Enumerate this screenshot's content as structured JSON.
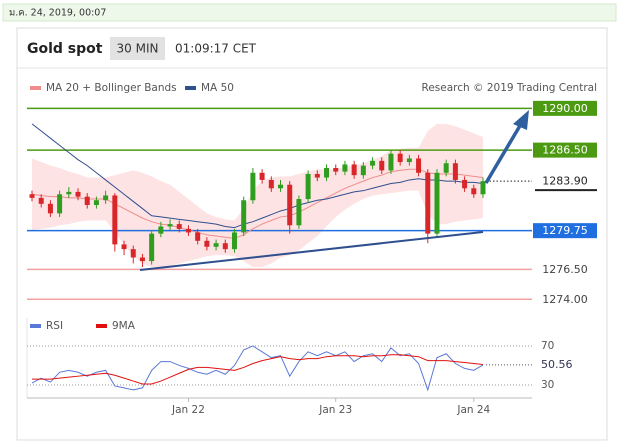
{
  "header": {
    "date": "ม.ค. 24, 2019, 00:07",
    "title": "Gold spot",
    "interval": "30 MIN",
    "time": "01:09:17 CET"
  },
  "chart_data": [
    {
      "type": "candlestick",
      "source": "Research © 2019 Trading Central",
      "ylim": [
        1273.1,
        1290.7
      ],
      "up_color": "#2f9e1f",
      "down_color": "#d9262a",
      "open": [
        1282.8,
        1282.5,
        1282.0,
        1281.2,
        1282.8,
        1283.0,
        1282.6,
        1281.9,
        1282.3,
        1282.7,
        1278.6,
        1278.2,
        1277.5,
        1277.2,
        1279.5,
        1280.1,
        1280.3,
        1279.9,
        1279.6,
        1278.9,
        1278.4,
        1278.7,
        1278.2,
        1279.6,
        1282.3,
        1284.6,
        1284.0,
        1283.3,
        1283.6,
        1280.2,
        1282.4,
        1284.5,
        1284.2,
        1285.0,
        1284.7,
        1285.3,
        1284.4,
        1285.2,
        1285.6,
        1284.8,
        1286.2,
        1285.5,
        1285.8,
        1284.6,
        1279.5,
        1284.6,
        1285.4,
        1284.0,
        1283.3,
        1282.8
      ],
      "high": [
        1283.1,
        1282.8,
        1282.3,
        1283.1,
        1283.4,
        1283.3,
        1282.9,
        1282.6,
        1283.1,
        1282.9,
        1278.9,
        1278.5,
        1277.8,
        1279.8,
        1280.5,
        1280.7,
        1280.6,
        1280.2,
        1279.9,
        1279.2,
        1279.0,
        1279.0,
        1279.9,
        1282.6,
        1285.0,
        1284.9,
        1284.3,
        1284.0,
        1283.9,
        1282.7,
        1284.8,
        1284.8,
        1285.3,
        1285.3,
        1285.6,
        1285.6,
        1285.5,
        1285.9,
        1285.9,
        1286.5,
        1286.5,
        1286.1,
        1286.1,
        1284.9,
        1284.9,
        1285.7,
        1285.7,
        1284.3,
        1283.6,
        1284.2
      ],
      "low": [
        1282.2,
        1281.7,
        1280.9,
        1280.9,
        1282.5,
        1282.3,
        1281.6,
        1281.6,
        1282.0,
        1278.0,
        1277.7,
        1277.0,
        1276.7,
        1276.9,
        1279.2,
        1279.8,
        1279.6,
        1279.3,
        1278.6,
        1278.1,
        1278.1,
        1277.9,
        1277.9,
        1279.3,
        1282.0,
        1283.7,
        1283.0,
        1283.0,
        1279.5,
        1279.9,
        1282.1,
        1283.9,
        1283.9,
        1284.4,
        1284.4,
        1284.1,
        1284.1,
        1284.9,
        1284.5,
        1284.5,
        1285.2,
        1285.2,
        1284.3,
        1278.7,
        1279.2,
        1284.3,
        1283.7,
        1283.0,
        1282.5,
        1282.5
      ],
      "close": [
        1282.5,
        1282.0,
        1281.2,
        1282.8,
        1283.0,
        1282.6,
        1281.9,
        1282.3,
        1282.7,
        1278.6,
        1278.2,
        1277.5,
        1277.2,
        1279.5,
        1280.1,
        1280.3,
        1279.9,
        1279.6,
        1278.9,
        1278.4,
        1278.7,
        1278.2,
        1279.6,
        1282.3,
        1284.6,
        1284.0,
        1283.3,
        1283.6,
        1280.2,
        1282.4,
        1284.5,
        1284.2,
        1285.0,
        1284.7,
        1285.3,
        1284.4,
        1285.2,
        1285.6,
        1284.8,
        1286.2,
        1285.5,
        1285.8,
        1284.6,
        1279.5,
        1284.6,
        1285.4,
        1284.0,
        1283.3,
        1282.8,
        1283.9
      ],
      "series": [
        {
          "name": "MA 20 + Bollinger Bands",
          "color": "#f08c8c",
          "band_color": "#fde3e3",
          "values": [
            1282.8,
            1282.7,
            1282.6,
            1282.6,
            1282.5,
            1282.5,
            1282.4,
            1282.4,
            1282.4,
            1282.0,
            1281.6,
            1281.2,
            1280.8,
            1280.5,
            1280.3,
            1280.2,
            1280.0,
            1279.8,
            1279.6,
            1279.4,
            1279.3,
            1279.2,
            1279.1,
            1279.4,
            1279.9,
            1280.3,
            1280.6,
            1280.9,
            1281.0,
            1281.3,
            1281.7,
            1282.1,
            1282.5,
            1282.9,
            1283.3,
            1283.6,
            1283.9,
            1284.2,
            1284.4,
            1284.7,
            1284.8,
            1284.9,
            1284.9,
            1284.6,
            1284.5,
            1284.5,
            1284.5,
            1284.4,
            1284.3,
            1284.2
          ],
          "upper": [
            1285.8,
            1285.5,
            1285.2,
            1285.0,
            1284.7,
            1284.5,
            1284.2,
            1284.2,
            1284.2,
            1284.4,
            1284.6,
            1284.8,
            1284.6,
            1284.3,
            1283.9,
            1283.6,
            1283.0,
            1282.4,
            1281.8,
            1281.2,
            1280.9,
            1280.7,
            1280.6,
            1281.6,
            1283.1,
            1283.9,
            1284.2,
            1284.3,
            1284.3,
            1284.5,
            1284.7,
            1284.9,
            1284.9,
            1284.9,
            1285.1,
            1285.2,
            1285.4,
            1285.7,
            1286.0,
            1286.5,
            1286.6,
            1286.7,
            1286.7,
            1288.1,
            1288.7,
            1288.7,
            1288.5,
            1288.2,
            1287.9,
            1287.6
          ],
          "lower": [
            1279.8,
            1279.9,
            1280.0,
            1280.2,
            1280.3,
            1280.5,
            1280.6,
            1280.6,
            1280.6,
            1279.6,
            1278.6,
            1277.6,
            1277.0,
            1276.7,
            1276.7,
            1276.8,
            1277.0,
            1277.2,
            1277.4,
            1277.6,
            1277.7,
            1277.7,
            1277.6,
            1277.2,
            1276.7,
            1276.7,
            1277.0,
            1277.5,
            1277.7,
            1278.1,
            1278.7,
            1279.3,
            1280.1,
            1280.9,
            1281.5,
            1282.0,
            1282.4,
            1282.7,
            1282.8,
            1282.9,
            1283.0,
            1283.1,
            1283.1,
            1281.1,
            1280.3,
            1280.3,
            1280.5,
            1280.6,
            1280.7,
            1280.8
          ]
        },
        {
          "name": "MA 50",
          "color": "#2f4f8f",
          "values": [
            1288.7,
            1288.1,
            1287.5,
            1286.9,
            1286.3,
            1285.7,
            1285.2,
            1284.6,
            1284.0,
            1283.4,
            1282.8,
            1282.2,
            1281.6,
            1281.0,
            1280.9,
            1280.8,
            1280.7,
            1280.6,
            1280.5,
            1280.4,
            1280.3,
            1280.1,
            1280.0,
            1280.3,
            1280.5,
            1280.8,
            1281.1,
            1281.4,
            1281.6,
            1281.9,
            1282.1,
            1282.3,
            1282.4,
            1282.6,
            1282.8,
            1283.0,
            1283.1,
            1283.3,
            1283.5,
            1283.7,
            1283.8,
            1284.0,
            1284.1,
            1284.0,
            1284.0,
            1283.9,
            1283.9,
            1283.8,
            1283.8,
            1283.7
          ]
        }
      ],
      "levels": [
        {
          "value": 1290,
          "label": "1290.00",
          "color": "#4c9a12",
          "style": "box"
        },
        {
          "value": 1286.5,
          "label": "1286.50",
          "color": "#4c9a12",
          "style": "box"
        },
        {
          "value": 1283.9,
          "label": "1283.90",
          "color": "#222222",
          "style": "current"
        },
        {
          "value": 1279.75,
          "label": "1279.75",
          "color": "#1f6fe0",
          "style": "box"
        },
        {
          "value": 1276.5,
          "label": "1276.50",
          "color": "#f2a0a0",
          "style": "text"
        },
        {
          "value": 1274,
          "label": "1274.00",
          "color": "#f2a0a0",
          "style": "text"
        }
      ]
    },
    {
      "type": "line",
      "ylim": [
        19.7,
        98.7
      ],
      "yticks": [
        30,
        70
      ],
      "categories": [
        null,
        null,
        null,
        null,
        null,
        null,
        null,
        null,
        null,
        null,
        null,
        null,
        null,
        null,
        null,
        null,
        null,
        "Jan 22",
        null,
        null,
        null,
        null,
        null,
        null,
        null,
        null,
        null,
        null,
        null,
        null,
        null,
        null,
        null,
        "Jan 23",
        null,
        null,
        null,
        null,
        null,
        null,
        null,
        null,
        null,
        null,
        null,
        null,
        null,
        null,
        "Jan 24",
        null
      ],
      "series": [
        {
          "name": "RSI",
          "color": "#5a78d6",
          "values": [
            32,
            37,
            33,
            43,
            45,
            43,
            39,
            43,
            45,
            29,
            27,
            25,
            27,
            45,
            54,
            54,
            50,
            47,
            43,
            41,
            45,
            41,
            50,
            66,
            70,
            64,
            58,
            60,
            39,
            54,
            64,
            60,
            64,
            60,
            64,
            54,
            60,
            62,
            54,
            68,
            60,
            62,
            52,
            25,
            58,
            62,
            52,
            47,
            45,
            50.56
          ],
          "value_labels": [
            null,
            null,
            null,
            null,
            null,
            null,
            null,
            null,
            null,
            null,
            null,
            null,
            null,
            null,
            null,
            null,
            null,
            null,
            null,
            null,
            null,
            null,
            null,
            null,
            null,
            null,
            null,
            null,
            null,
            null,
            null,
            null,
            null,
            null,
            null,
            null,
            null,
            null,
            null,
            null,
            null,
            null,
            null,
            null,
            null,
            null,
            null,
            null,
            null,
            "50.56"
          ]
        },
        {
          "name": "9MA",
          "color": "#e01010",
          "values": [
            36,
            36,
            36,
            37,
            38,
            39,
            40,
            41,
            42,
            40,
            37,
            34,
            31,
            31,
            34,
            38,
            42,
            46,
            48,
            48,
            47,
            46,
            45,
            48,
            52,
            55,
            57,
            59,
            57,
            56,
            57,
            57,
            59,
            60,
            60,
            60,
            59,
            60,
            60,
            61,
            61,
            60,
            59,
            55,
            55,
            55,
            54,
            53,
            52,
            51
          ]
        }
      ]
    }
  ]
}
